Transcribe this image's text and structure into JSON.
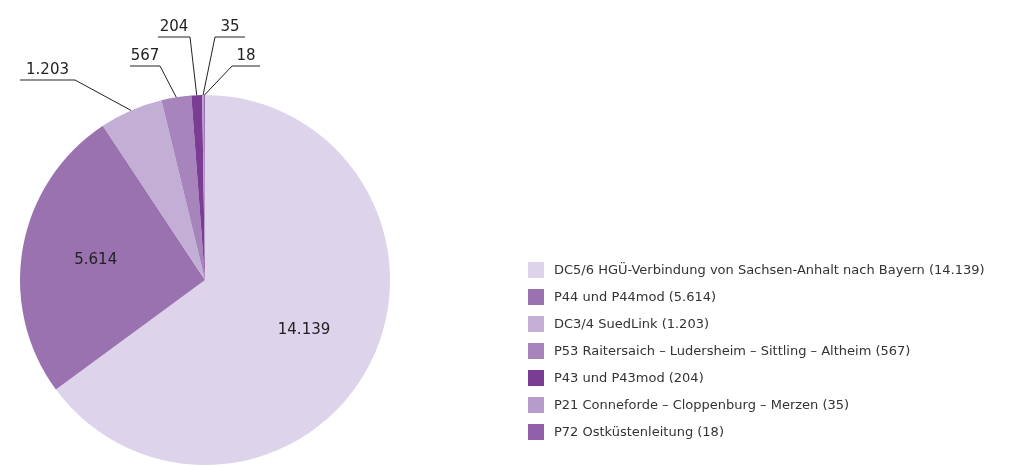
{
  "chart_data": {
    "type": "pie",
    "categories": [
      "DC5/6 HGÜ-Verbindung von Sachsen-Anhalt nach Bayern (14.139)",
      "P44 und P44mod (5.614)",
      "DC3/4 SuedLink (1.203)",
      "P53 Raitersaich – Ludersheim – Sittling – Altheim (567)",
      "P43 und P43mod (204)",
      "P21 Conneforde – Cloppenburg – Merzen (35)",
      "P72 Ostküstenleitung (18)"
    ],
    "values": [
      14139,
      5614,
      1203,
      567,
      204,
      35,
      18
    ],
    "value_labels": [
      "14.139",
      "5.614",
      "1.203",
      "567",
      "204",
      "35",
      "18"
    ],
    "colors": [
      "#ddd3ea",
      "#9b72b0",
      "#c3aed6",
      "#a784bb",
      "#7a3d93",
      "#b69ccb",
      "#9160a8"
    ],
    "legend": "right"
  }
}
